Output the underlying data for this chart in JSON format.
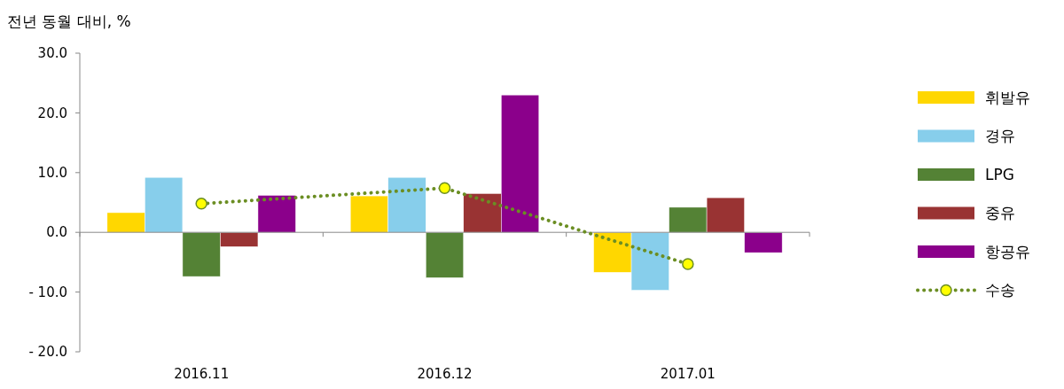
{
  "chart_data": {
    "type": "bar",
    "ylabel": "전년 동월 대비, %",
    "categories": [
      "2016.11",
      "2016.12",
      "2017.01"
    ],
    "series": [
      {
        "name": "휘발유",
        "color": "#ffd700",
        "values": [
          3.3,
          6.1,
          -6.7
        ]
      },
      {
        "name": "경유",
        "color": "#87ceeb",
        "values": [
          9.2,
          9.2,
          -9.7
        ]
      },
      {
        "name": "LPG",
        "color": "#548235",
        "values": [
          -7.4,
          -7.6,
          4.2
        ]
      },
      {
        "name": "중유",
        "color": "#993333",
        "values": [
          -2.4,
          6.5,
          5.8
        ]
      },
      {
        "name": "항공유",
        "color": "#8b008b",
        "values": [
          6.2,
          23.0,
          -3.4
        ]
      },
      {
        "name": "수송",
        "type": "line",
        "color": "#6b8e23",
        "values": [
          4.8,
          7.4,
          -5.3
        ],
        "marker": "circle",
        "line_style": "dotted"
      }
    ],
    "ylim": [
      -20,
      30
    ],
    "yticks": [
      {
        "value": -20,
        "label": "- 20.0"
      },
      {
        "value": -10,
        "label": "- 10.0"
      },
      {
        "value": 0,
        "label": "0.0"
      },
      {
        "value": 10,
        "label": "10.0"
      },
      {
        "value": 20,
        "label": "20.0"
      },
      {
        "value": 30,
        "label": "30.0"
      }
    ],
    "legend": "right"
  }
}
